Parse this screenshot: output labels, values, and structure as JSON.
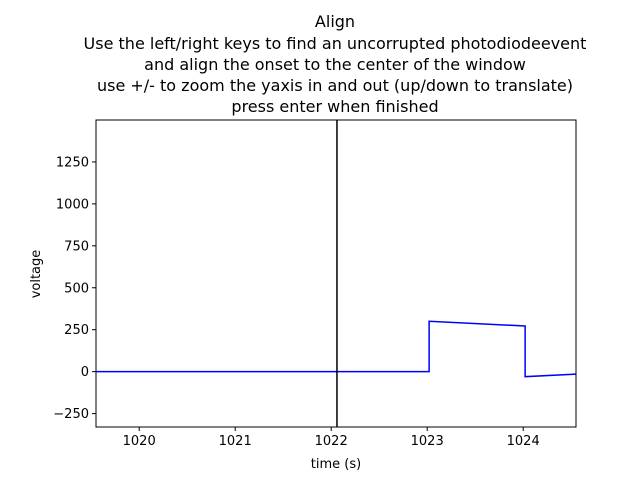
{
  "window": {
    "title_lines": [
      "Align",
      "Use the left/right keys to find an uncorrupted photodiodeevent",
      "and align the onset to the center of the window",
      "use +/- to zoom the yaxis in and out (up/down to translate)",
      "press enter when finished"
    ]
  },
  "chart_data": {
    "type": "line",
    "title": "Align",
    "xlabel": "time (s)",
    "ylabel": "voltage",
    "xlim": [
      1019.55,
      1024.55
    ],
    "ylim": [
      -330,
      1500
    ],
    "xticks": [
      1020,
      1021,
      1022,
      1023,
      1024
    ],
    "yticks": [
      -250,
      0,
      250,
      500,
      750,
      1000,
      1250
    ],
    "grid": false,
    "legend": "none",
    "series": [
      {
        "color": "#0000ff",
        "x": [
          1019.55,
          1023.02,
          1023.02,
          1024.02,
          1024.02,
          1024.55
        ],
        "y": [
          0,
          0,
          300,
          272,
          -30,
          -15
        ]
      }
    ],
    "vline": {
      "x": 1022.06,
      "color": "#000000"
    }
  }
}
